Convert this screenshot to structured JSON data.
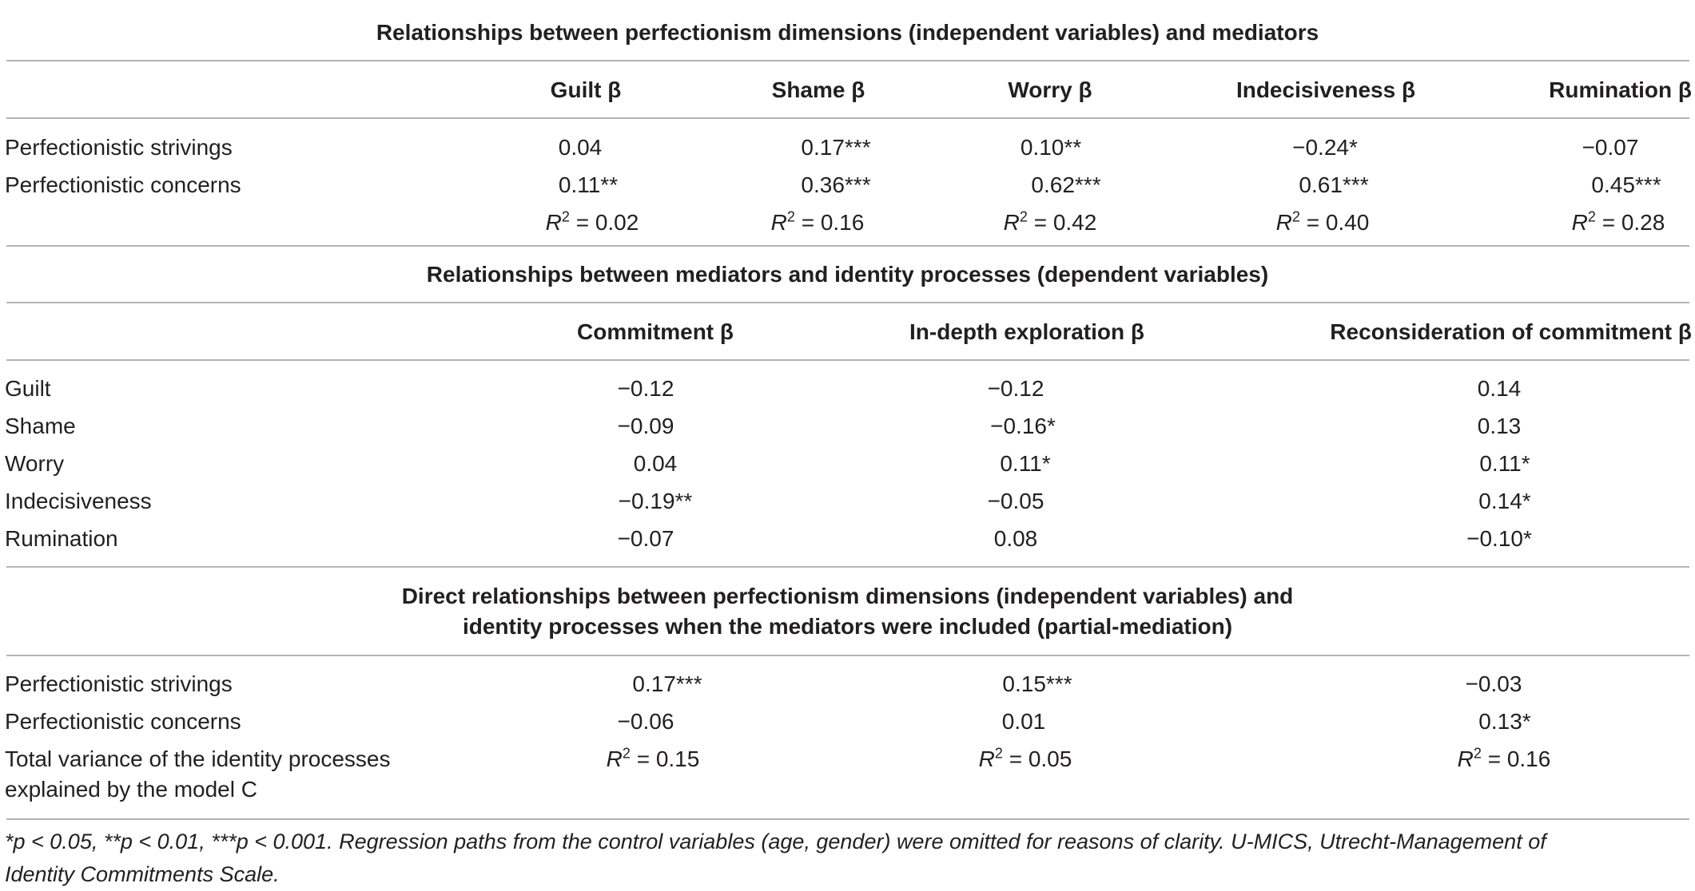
{
  "section1": {
    "title": "Relationships between perfectionism dimensions (independent variables) and mediators",
    "headers": [
      "Guilt β",
      "Shame β",
      "Worry β",
      "Indecisiveness β",
      "Rumination β"
    ],
    "rows": [
      {
        "label": "Perfectionistic strivings",
        "values": [
          "0.04",
          "0.17***",
          "0.10**",
          "−0.24*",
          "−0.07"
        ]
      },
      {
        "label": "Perfectionistic concerns",
        "values": [
          "0.11**",
          "0.36***",
          "0.62***",
          "0.61***",
          "0.45***"
        ]
      }
    ],
    "r2_symbol": "R",
    "r2_exp": "2",
    "r2_values": [
      "= 0.02",
      "= 0.16",
      "= 0.42",
      "= 0.40",
      "= 0.28"
    ]
  },
  "section2": {
    "title": "Relationships between mediators and identity processes (dependent variables)",
    "headers": [
      "Commitment β",
      "In-depth exploration β",
      "Reconsideration of commitment β"
    ],
    "rows": [
      {
        "label": "Guilt",
        "values": [
          "−0.12",
          "−0.12",
          "0.14"
        ]
      },
      {
        "label": "Shame",
        "values": [
          "−0.09",
          "−0.16*",
          "0.13"
        ]
      },
      {
        "label": "Worry",
        "values": [
          "0.04",
          "0.11*",
          "0.11*"
        ]
      },
      {
        "label": "Indecisiveness",
        "values": [
          "−0.19**",
          "−0.05",
          "0.14*"
        ]
      },
      {
        "label": "Rumination",
        "values": [
          "−0.07",
          "0.08",
          "−0.10*"
        ]
      }
    ]
  },
  "section3": {
    "title_line1": "Direct relationships between perfectionism dimensions (independent variables) and",
    "title_line2": "identity processes when the mediators were included (partial-mediation)",
    "rows": [
      {
        "label": "Perfectionistic strivings",
        "values": [
          "0.17***",
          "0.15***",
          "−0.03"
        ]
      },
      {
        "label": "Perfectionistic concerns",
        "values": [
          "−0.06",
          "0.01",
          "0.13*"
        ]
      }
    ],
    "total_label_line1": "Total variance of the identity processes",
    "total_label_line2": "explained by the model C",
    "r2_symbol": "R",
    "r2_exp": "2",
    "r2_values": [
      "= 0.15",
      "= 0.05",
      "= 0.16"
    ]
  },
  "footnote": {
    "line1": "*p < 0.05, **p < 0.01, ***p < 0.001. Regression paths from the control variables (age, gender) were omitted for reasons of clarity. U-MICS, Utrecht-Management of",
    "line2": "Identity Commitments Scale."
  }
}
